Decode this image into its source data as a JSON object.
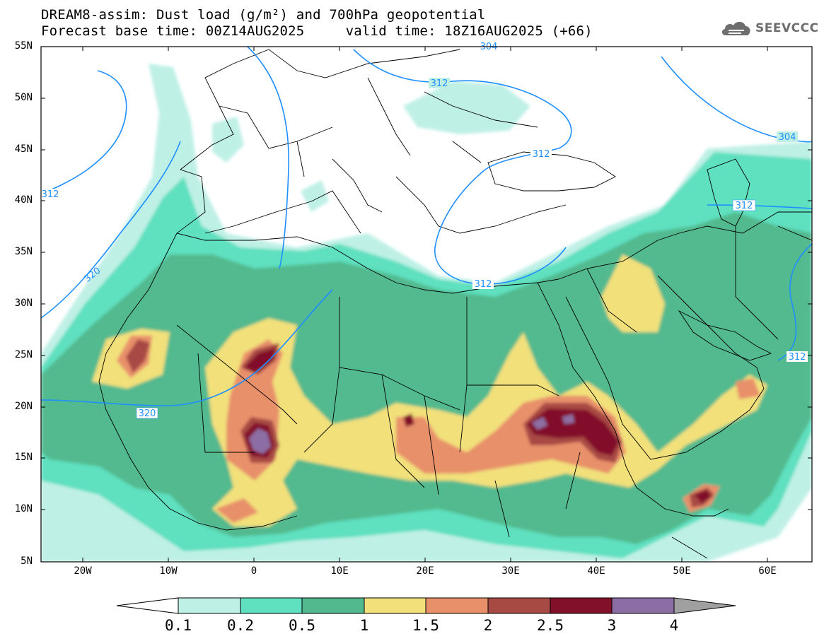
{
  "header": {
    "line1": "DREAM8-assim: Dust load (g/m²) and 700hPa geopotential",
    "line2": "Forecast base time: 00Z14AUG2025     valid time: 18Z16AUG2025 (+66)"
  },
  "logo": {
    "text": "SEEVCCC",
    "icon": "cloud-logo-icon"
  },
  "map": {
    "lat_labels": [
      "55N",
      "50N",
      "45N",
      "40N",
      "35N",
      "30N",
      "25N",
      "20N",
      "15N",
      "10N",
      "5N"
    ],
    "lon_labels": [
      "20W",
      "10W",
      "0",
      "10E",
      "20E",
      "30E",
      "40E",
      "50E",
      "60E"
    ],
    "contour_labels": [
      "304",
      "312",
      "304",
      "312",
      "312",
      "312",
      "312",
      "320",
      "320",
      "312"
    ]
  },
  "colorbar": {
    "labels": [
      "0.1",
      "0.2",
      "0.5",
      "1",
      "1.5",
      "2",
      "2.5",
      "3",
      "4"
    ],
    "colors": [
      "#bff0e6",
      "#5fe0bf",
      "#52b98e",
      "#f2e07a",
      "#e8906a",
      "#a84a44",
      "#82102a",
      "#8d6ea4",
      "#a0a0a0"
    ],
    "under_color": "#ffffff"
  },
  "contour_color": "#1f8fff"
}
